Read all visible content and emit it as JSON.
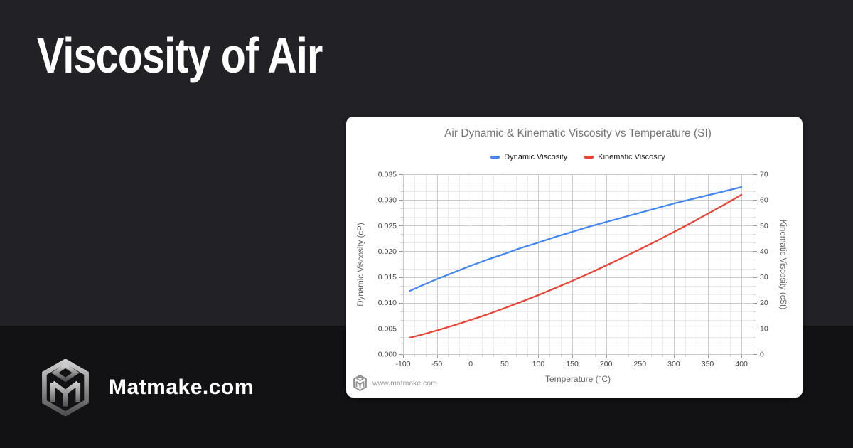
{
  "page": {
    "title": "Viscosity of Air",
    "colors": {
      "bg_top": "#222226",
      "bg_bottom": "#121215",
      "card": "#ffffff",
      "title_text": "#ffffff"
    }
  },
  "brand": {
    "name": "Matmake.com",
    "logo": "matmake-cube-logo"
  },
  "card": {
    "watermark": "www.matmake.com"
  },
  "chart_data": {
    "type": "line",
    "title": "Air Dynamic & Kinematic Viscosity vs Temperature (SI)",
    "xlabel": "Temperature (°C)",
    "ylabel_left": "Dynamic Viscosity (cP)",
    "ylabel_right": "Kinematic Viscosity (cSt)",
    "legend_position": "top",
    "grid": true,
    "x": [
      -90,
      -75,
      -50,
      -25,
      0,
      25,
      50,
      75,
      100,
      125,
      150,
      175,
      200,
      225,
      250,
      275,
      300,
      325,
      350,
      375,
      400
    ],
    "series": [
      {
        "name": "Dynamic Viscosity",
        "axis": "left",
        "color": "#4285f4",
        "values": [
          0.0123,
          0.0132,
          0.0146,
          0.0159,
          0.0172,
          0.0184,
          0.0195,
          0.0207,
          0.0217,
          0.0228,
          0.0238,
          0.0248,
          0.0257,
          0.0266,
          0.0275,
          0.0284,
          0.0293,
          0.0301,
          0.0309,
          0.0317,
          0.0325
        ]
      },
      {
        "name": "Kinematic Viscosity",
        "axis": "right",
        "color": "#ea4335",
        "values": [
          6.4,
          7.4,
          9.2,
          11.2,
          13.3,
          15.5,
          17.9,
          20.4,
          23.0,
          25.7,
          28.5,
          31.4,
          34.5,
          37.6,
          40.8,
          44.1,
          47.5,
          51.0,
          54.6,
          58.2,
          62.0
        ]
      }
    ],
    "x_axis": {
      "min": -100,
      "max": 416.67,
      "major_step": 50,
      "minor_divisions": 3,
      "ticks": [
        -100,
        -50,
        0,
        50,
        100,
        150,
        200,
        250,
        300,
        350,
        400
      ]
    },
    "left_axis": {
      "min": 0,
      "max": 0.035,
      "major_step": 0.005,
      "decimals": 3,
      "ticks": [
        "0.000",
        "0.005",
        "0.010",
        "0.015",
        "0.020",
        "0.025",
        "0.030",
        "0.035"
      ]
    },
    "right_axis": {
      "min": 0,
      "max": 70,
      "major_step": 10,
      "ticks": [
        0,
        10,
        20,
        30,
        40,
        50,
        60,
        70
      ]
    }
  }
}
